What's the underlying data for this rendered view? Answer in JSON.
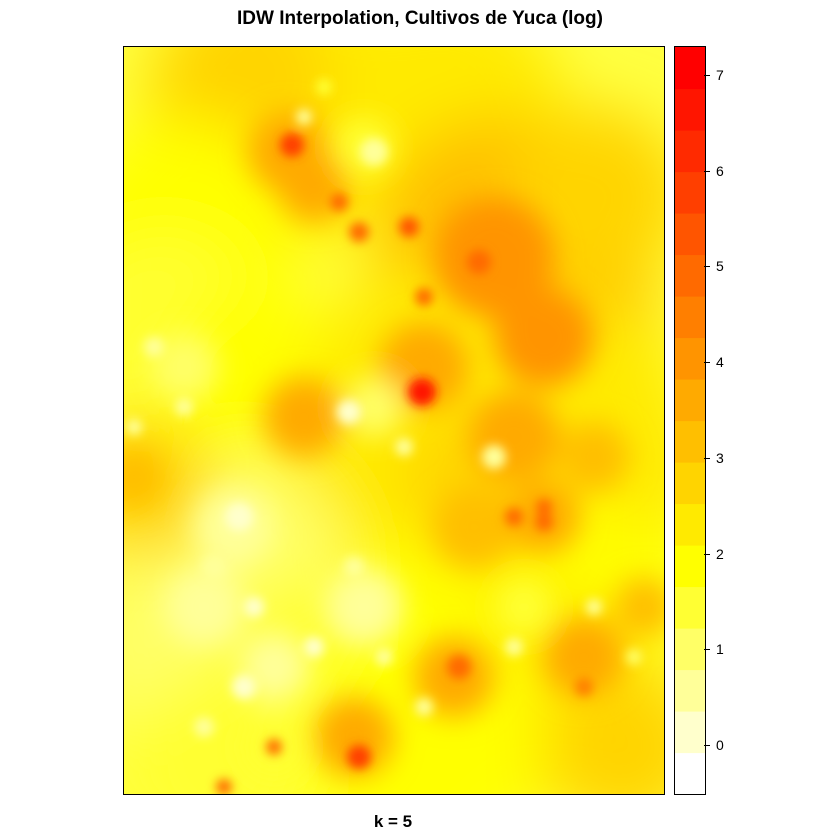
{
  "chart_data": {
    "type": "heatmap",
    "title": "IDW Interpolation, Cultivos de Yuca (log)",
    "xlabel": "k = 5",
    "ylabel": "",
    "colorbar": {
      "min": -0.5,
      "max": 7.3,
      "ticks": [
        0,
        1,
        2,
        3,
        4,
        5,
        6,
        7
      ],
      "tick_labels": [
        "0",
        "1",
        "2",
        "3",
        "4",
        "5",
        "6",
        "7"
      ],
      "colors_low_to_high": [
        "#ffffff",
        "#ffffcc",
        "#ffff99",
        "#ffff66",
        "#ffff33",
        "#ffff00",
        "#ffea00",
        "#ffd400",
        "#ffbf00",
        "#ffaa00",
        "#ff9400",
        "#ff7f00",
        "#ff6a00",
        "#ff5500",
        "#ff3f00",
        "#ff2a00",
        "#ff1500",
        "#ff0000"
      ]
    },
    "grid": false,
    "legend_position": "right"
  }
}
